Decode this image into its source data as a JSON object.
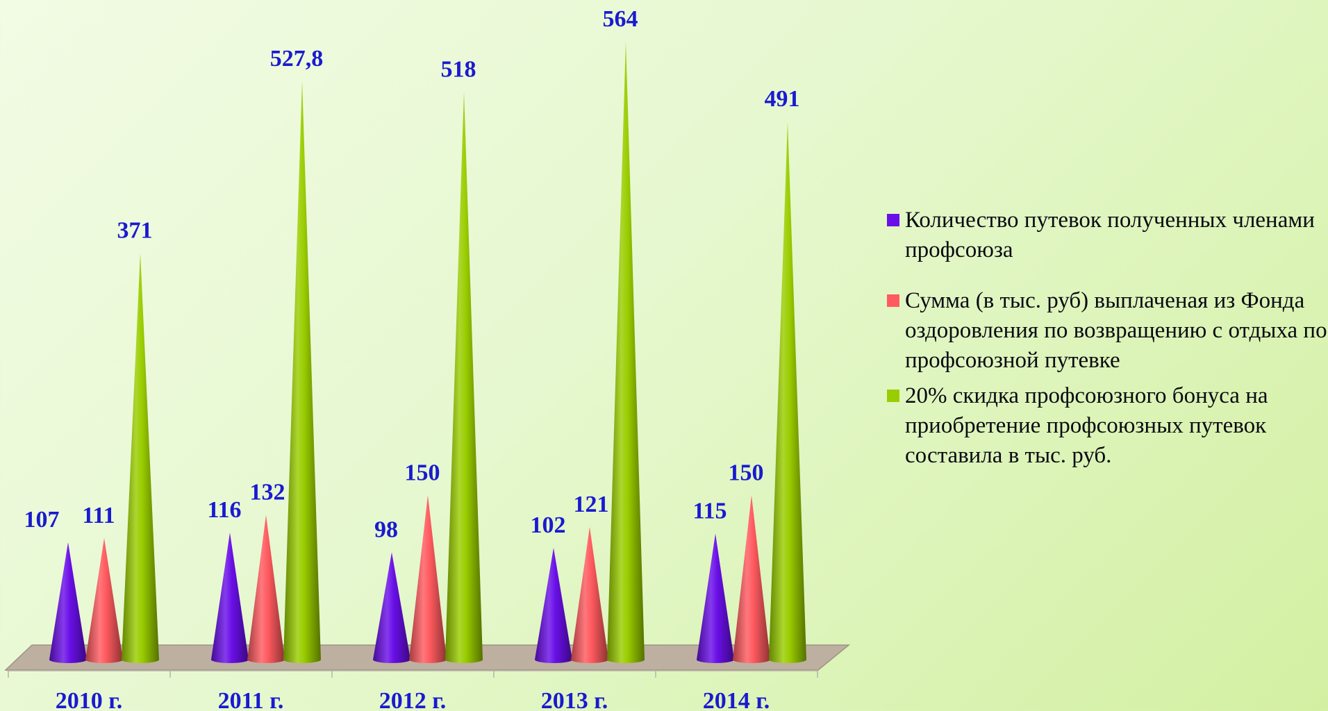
{
  "chart_data": {
    "type": "bar",
    "categories": [
      "2010 г.",
      "2011 г.",
      "2012 г.",
      "2013 г.",
      "2014 г."
    ],
    "series": [
      {
        "name": "Количество путевок полученных членами профсоюза",
        "values": [
          107,
          116,
          98,
          102,
          115
        ],
        "labels": [
          "107",
          "116",
          "98",
          "102",
          "115"
        ],
        "color": "#6a0fe8"
      },
      {
        "name": "Сумма (в тыс. руб) выплаченая из Фонда оздоровления по возвращению с отдыха по профсоюзной путевке",
        "values": [
          111,
          132,
          150,
          121,
          150
        ],
        "labels": [
          "111",
          "132",
          "150",
          "121",
          "150"
        ],
        "color": "#ff5a5f"
      },
      {
        "name": " 20% скидка профсоюзного бонуса на приобретение профсоюзных путевок составила в тыс. руб.",
        "values": [
          371,
          527.8,
          518,
          564,
          491
        ],
        "labels": [
          "371",
          "527,8",
          "518",
          "564",
          "491"
        ],
        "color": "#9acd00"
      }
    ],
    "bar_shape": "cone",
    "legend_position": "right",
    "grid": false
  }
}
